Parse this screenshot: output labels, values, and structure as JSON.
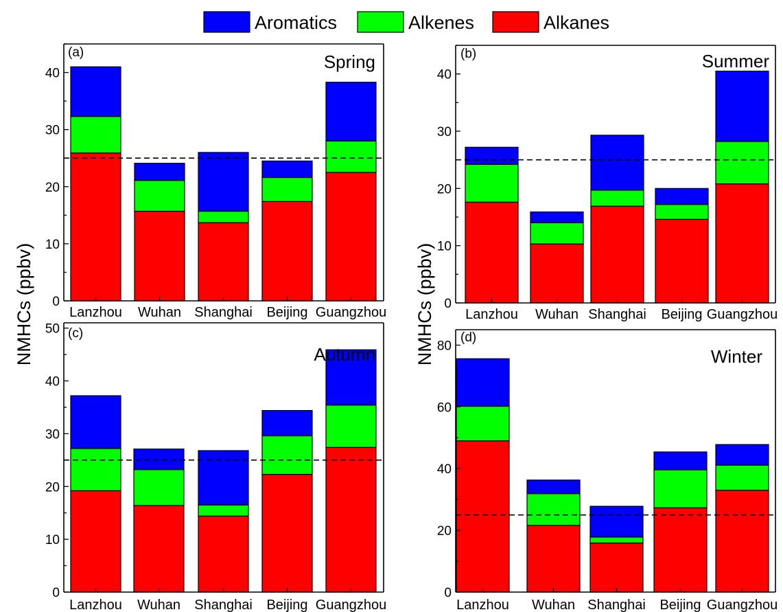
{
  "legend": [
    {
      "name": "Aromatics",
      "color": "#0000ff"
    },
    {
      "name": "Alkenes",
      "color": "#00ff00"
    },
    {
      "name": "Alkanes",
      "color": "#ff0000"
    }
  ],
  "ylabel": "NMHCs (ppbv)",
  "chart_data": [
    {
      "type": "bar",
      "stacked": true,
      "panel": "(a)",
      "title": "Spring",
      "categories": [
        "Lanzhou",
        "Wuhan",
        "Shanghai",
        "Beijing",
        "Guangzhou"
      ],
      "series": [
        {
          "name": "Alkanes",
          "values": [
            25.9,
            15.7,
            13.7,
            17.4,
            22.5
          ]
        },
        {
          "name": "Alkenes",
          "values": [
            6.4,
            5.4,
            2.0,
            4.2,
            5.5
          ]
        },
        {
          "name": "Aromatics",
          "values": [
            8.7,
            3.0,
            10.3,
            2.9,
            10.3
          ]
        }
      ],
      "ylim": [
        0,
        45
      ],
      "yticks": [
        0,
        10,
        20,
        30,
        40
      ],
      "reference_line": 25,
      "ylabel": "NMHCs (ppbv)"
    },
    {
      "type": "bar",
      "stacked": true,
      "panel": "(b)",
      "title": "Summer",
      "categories": [
        "Lanzhou",
        "Wuhan",
        "Shanghai",
        "Beijing",
        "Guangzhou"
      ],
      "series": [
        {
          "name": "Alkanes",
          "values": [
            17.6,
            10.3,
            16.9,
            14.6,
            20.8
          ]
        },
        {
          "name": "Alkenes",
          "values": [
            6.6,
            3.7,
            2.8,
            2.6,
            7.4
          ]
        },
        {
          "name": "Aromatics",
          "values": [
            3.0,
            1.9,
            9.6,
            2.8,
            12.3
          ]
        }
      ],
      "ylim": [
        0,
        45
      ],
      "yticks": [
        0,
        10,
        20,
        30,
        40
      ],
      "reference_line": 25,
      "ylabel": "NMHCs (ppbv)"
    },
    {
      "type": "bar",
      "stacked": true,
      "panel": "(c)",
      "title": "Autumn",
      "categories": [
        "Lanzhou",
        "Wuhan",
        "Shanghai",
        "Beijing",
        "Guangzhou"
      ],
      "series": [
        {
          "name": "Alkanes",
          "values": [
            19.2,
            16.4,
            14.4,
            22.3,
            27.4
          ]
        },
        {
          "name": "Alkenes",
          "values": [
            8.0,
            6.8,
            2.1,
            7.3,
            8.0
          ]
        },
        {
          "name": "Aromatics",
          "values": [
            10.0,
            3.9,
            10.3,
            4.8,
            10.5
          ]
        }
      ],
      "ylim": [
        0,
        51
      ],
      "yticks": [
        0,
        10,
        20,
        30,
        40,
        50
      ],
      "reference_line": 25,
      "ylabel": "NMHCs (ppbv)"
    },
    {
      "type": "bar",
      "stacked": true,
      "panel": "(d)",
      "title": "Winter",
      "categories": [
        "Lanzhou",
        "Wuhan",
        "Shanghai",
        "Beijing",
        "Guangzhou"
      ],
      "series": [
        {
          "name": "Alkanes",
          "values": [
            49.0,
            21.6,
            15.9,
            27.3,
            33.0
          ]
        },
        {
          "name": "Alkenes",
          "values": [
            11.2,
            10.3,
            1.9,
            12.3,
            8.1
          ]
        },
        {
          "name": "Aromatics",
          "values": [
            15.4,
            4.4,
            10.0,
            5.8,
            6.7
          ]
        }
      ],
      "ylim": [
        0,
        85
      ],
      "yticks": [
        0,
        20,
        40,
        60,
        80
      ],
      "reference_line": 25,
      "ylabel": "NMHCs (ppbv)"
    }
  ]
}
